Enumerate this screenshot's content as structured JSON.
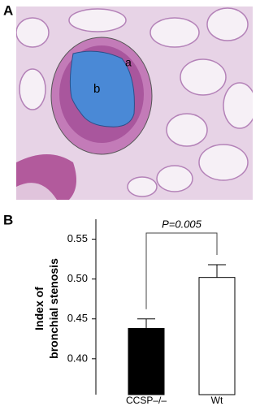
{
  "figure_panels": {
    "image_panel": "A",
    "image_regions": [
      "a",
      "b"
    ],
    "chart_panel": "B"
  },
  "chart_data": {
    "type": "bar",
    "y_label": "Index of bronchial stenosis",
    "categories": [
      "CCSP–/–",
      "Wt"
    ],
    "values": [
      0.438,
      0.502
    ],
    "errors": [
      0.012,
      0.016
    ],
    "colors": [
      "#000000",
      "#ffffff"
    ],
    "ylim": [
      0.355,
      0.575
    ],
    "yticks": [
      {
        "value": 0.4,
        "label": "0.40"
      },
      {
        "value": 0.45,
        "label": "0.45"
      },
      {
        "value": 0.5,
        "label": "0.50"
      },
      {
        "value": 0.55,
        "label": "0.55"
      }
    ],
    "annotation": "P=0.005"
  }
}
